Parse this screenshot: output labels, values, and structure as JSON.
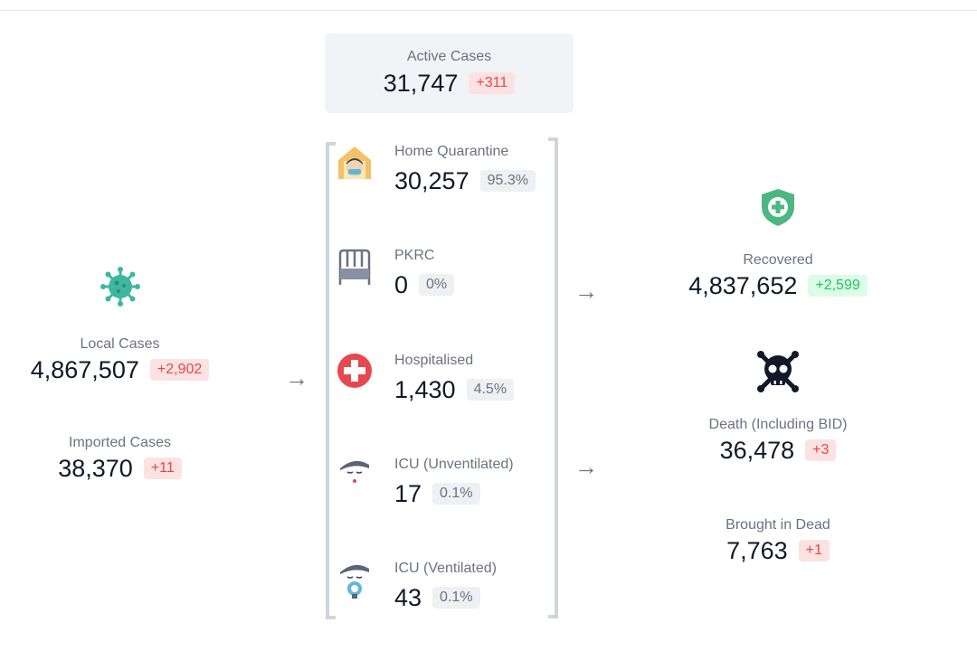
{
  "active": {
    "label": "Active Cases",
    "value": "31,747",
    "change": "+311"
  },
  "local": {
    "label": "Local Cases",
    "value": "4,867,507",
    "change": "+2,902",
    "icon": "virus-icon"
  },
  "imported": {
    "label": "Imported Cases",
    "value": "38,370",
    "change": "+11"
  },
  "breakdown": [
    {
      "label": "Home Quarantine",
      "value": "30,257",
      "pct": "95.3%",
      "icon": "home-quarantine-icon"
    },
    {
      "label": "PKRC",
      "value": "0",
      "pct": "0%",
      "icon": "bed-icon"
    },
    {
      "label": "Hospitalised",
      "value": "1,430",
      "pct": "4.5%",
      "icon": "hospital-cross-icon"
    },
    {
      "label": "ICU (Unventilated)",
      "value": "17",
      "pct": "0.1%",
      "icon": "icu-patient-icon"
    },
    {
      "label": "ICU (Ventilated)",
      "value": "43",
      "pct": "0.1%",
      "icon": "ventilated-patient-icon"
    }
  ],
  "recovered": {
    "label": "Recovered",
    "value": "4,837,652",
    "change": "+2,599",
    "icon": "shield-plus-icon"
  },
  "death": {
    "label": "Death (Including BID)",
    "value": "36,478",
    "change": "+3",
    "icon": "skull-crossbones-icon"
  },
  "bid": {
    "label": "Brought in Dead",
    "value": "7,763",
    "change": "+1"
  },
  "arrows": [
    "→",
    "→",
    "→"
  ],
  "colors": {
    "virus": "#3fb6a0",
    "shield": "#4cb782",
    "cross": "#e5484d",
    "skull": "#111827",
    "house": "#f2c26b"
  }
}
